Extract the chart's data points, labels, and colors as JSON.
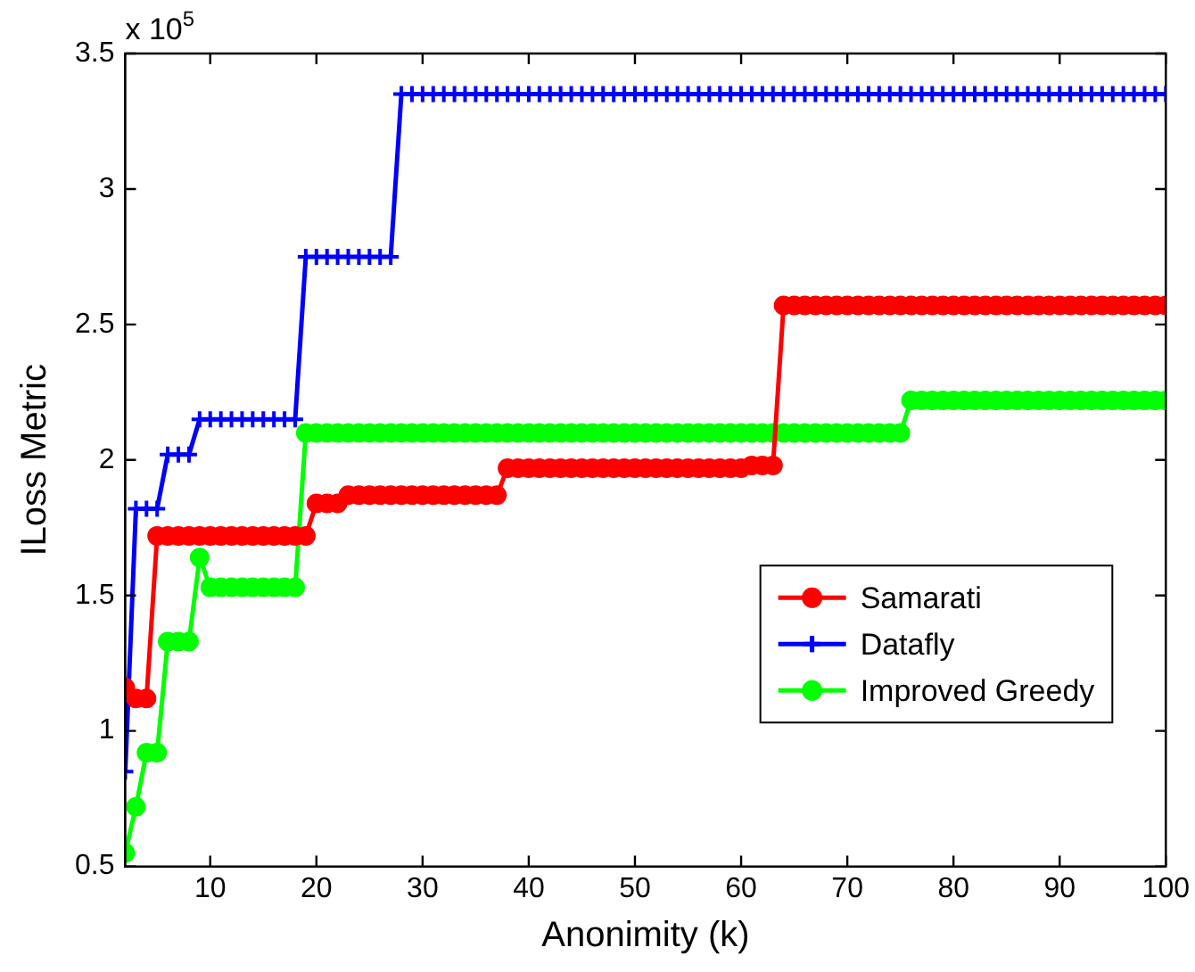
{
  "chart_data": {
    "type": "line",
    "xlabel": "Anonimity (k)",
    "ylabel": "ILoss Metric",
    "annotations": [
      "x 10$^{5}$"
    ],
    "x": [
      2,
      3,
      4,
      5,
      6,
      7,
      8,
      9,
      10,
      11,
      12,
      13,
      14,
      15,
      16,
      17,
      18,
      19,
      20,
      21,
      22,
      23,
      24,
      25,
      26,
      27,
      28,
      29,
      30,
      31,
      32,
      33,
      34,
      35,
      36,
      37,
      38,
      39,
      40,
      41,
      42,
      43,
      44,
      45,
      46,
      47,
      48,
      49,
      50,
      51,
      52,
      53,
      54,
      55,
      56,
      57,
      58,
      59,
      60,
      61,
      62,
      63,
      64,
      65,
      66,
      67,
      68,
      69,
      70,
      71,
      72,
      73,
      74,
      75,
      76,
      77,
      78,
      79,
      80,
      81,
      82,
      83,
      84,
      85,
      86,
      87,
      88,
      89,
      90,
      91,
      92,
      93,
      94,
      95,
      96,
      97,
      98,
      99,
      100
    ],
    "series": [
      {
        "name": "Samarati",
        "color": "#ff0000",
        "marker": "circle",
        "values": [
          1.16,
          1.12,
          1.12,
          1.72,
          1.72,
          1.72,
          1.72,
          1.72,
          1.72,
          1.72,
          1.72,
          1.72,
          1.72,
          1.72,
          1.72,
          1.72,
          1.72,
          1.72,
          1.84,
          1.84,
          1.84,
          1.87,
          1.87,
          1.87,
          1.87,
          1.87,
          1.87,
          1.87,
          1.87,
          1.87,
          1.87,
          1.87,
          1.87,
          1.87,
          1.87,
          1.87,
          1.97,
          1.97,
          1.97,
          1.97,
          1.97,
          1.97,
          1.97,
          1.97,
          1.97,
          1.97,
          1.97,
          1.97,
          1.97,
          1.97,
          1.97,
          1.97,
          1.97,
          1.97,
          1.97,
          1.97,
          1.97,
          1.97,
          1.97,
          1.98,
          1.98,
          1.98,
          2.57,
          2.57,
          2.57,
          2.57,
          2.57,
          2.57,
          2.57,
          2.57,
          2.57,
          2.57,
          2.57,
          2.57,
          2.57,
          2.57,
          2.57,
          2.57,
          2.57,
          2.57,
          2.57,
          2.57,
          2.57,
          2.57,
          2.57,
          2.57,
          2.57,
          2.57,
          2.57,
          2.57,
          2.57,
          2.57,
          2.57,
          2.57,
          2.57,
          2.57,
          2.57,
          2.57,
          2.57
        ]
      },
      {
        "name": "Datafly",
        "color": "#0000ff",
        "marker": "cross",
        "values": [
          0.85,
          1.82,
          1.82,
          1.82,
          2.02,
          2.02,
          2.02,
          2.15,
          2.15,
          2.15,
          2.15,
          2.15,
          2.15,
          2.15,
          2.15,
          2.15,
          2.15,
          2.75,
          2.75,
          2.75,
          2.75,
          2.75,
          2.75,
          2.75,
          2.75,
          2.75,
          3.35,
          3.35,
          3.35,
          3.35,
          3.35,
          3.35,
          3.35,
          3.35,
          3.35,
          3.35,
          3.35,
          3.35,
          3.35,
          3.35,
          3.35,
          3.35,
          3.35,
          3.35,
          3.35,
          3.35,
          3.35,
          3.35,
          3.35,
          3.35,
          3.35,
          3.35,
          3.35,
          3.35,
          3.35,
          3.35,
          3.35,
          3.35,
          3.35,
          3.35,
          3.35,
          3.35,
          3.35,
          3.35,
          3.35,
          3.35,
          3.35,
          3.35,
          3.35,
          3.35,
          3.35,
          3.35,
          3.35,
          3.35,
          3.35,
          3.35,
          3.35,
          3.35,
          3.35,
          3.35,
          3.35,
          3.35,
          3.35,
          3.35,
          3.35,
          3.35,
          3.35,
          3.35,
          3.35,
          3.35,
          3.35,
          3.35,
          3.35,
          3.35,
          3.35,
          3.35,
          3.35,
          3.35,
          3.35
        ]
      },
      {
        "name": "Improved Greedy",
        "color": "#00ff00",
        "marker": "circle",
        "values": [
          0.55,
          0.72,
          0.92,
          0.92,
          1.33,
          1.33,
          1.33,
          1.64,
          1.53,
          1.53,
          1.53,
          1.53,
          1.53,
          1.53,
          1.53,
          1.53,
          1.53,
          2.1,
          2.1,
          2.1,
          2.1,
          2.1,
          2.1,
          2.1,
          2.1,
          2.1,
          2.1,
          2.1,
          2.1,
          2.1,
          2.1,
          2.1,
          2.1,
          2.1,
          2.1,
          2.1,
          2.1,
          2.1,
          2.1,
          2.1,
          2.1,
          2.1,
          2.1,
          2.1,
          2.1,
          2.1,
          2.1,
          2.1,
          2.1,
          2.1,
          2.1,
          2.1,
          2.1,
          2.1,
          2.1,
          2.1,
          2.1,
          2.1,
          2.1,
          2.1,
          2.1,
          2.1,
          2.1,
          2.1,
          2.1,
          2.1,
          2.1,
          2.1,
          2.1,
          2.1,
          2.1,
          2.1,
          2.1,
          2.1,
          2.22,
          2.22,
          2.22,
          2.22,
          2.22,
          2.22,
          2.22,
          2.22,
          2.22,
          2.22,
          2.22,
          2.22,
          2.22,
          2.22,
          2.22,
          2.22,
          2.22,
          2.22,
          2.22,
          2.22,
          2.22,
          2.22,
          2.22,
          2.22,
          2.22
        ]
      }
    ],
    "xlim": [
      2,
      100
    ],
    "xticks": [
      10,
      20,
      30,
      40,
      50,
      60,
      70,
      80,
      90,
      100
    ],
    "ylim": [
      0.5,
      3.5
    ],
    "yticks": [
      0.5,
      1,
      1.5,
      2,
      2.5,
      3,
      3.5
    ],
    "grid": false,
    "legend": "right",
    "line_style": "solid"
  }
}
